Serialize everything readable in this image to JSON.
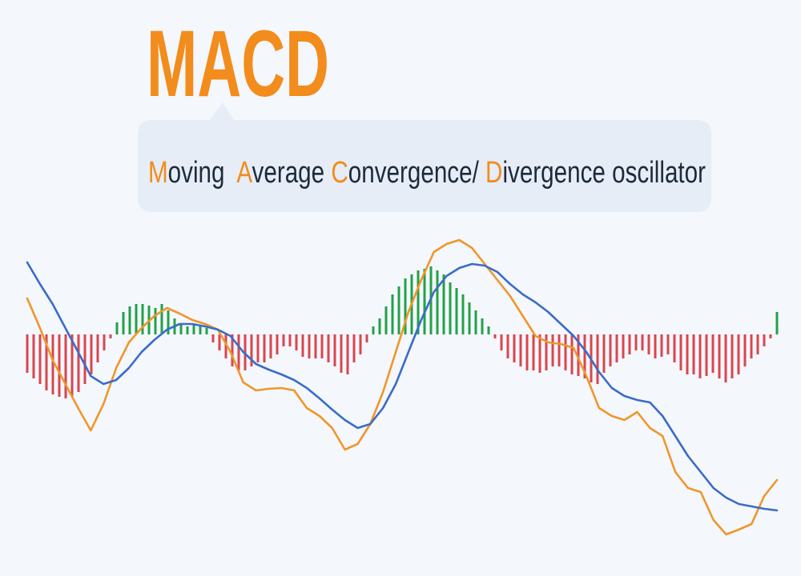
{
  "chart_data": {
    "type": "macd",
    "title": "MACD",
    "subtitle_parts": [
      "M",
      "oving  ",
      "A",
      "verage ",
      "C",
      "onvergence/ ",
      "D",
      "ivergence oscillator"
    ],
    "title_color": "#f28c1c",
    "text_color": "#1e2a3a",
    "ylim": [
      -260,
      130
    ],
    "histogram": {
      "positive_color": "#23a04a",
      "negative_color": "#d9464f",
      "values": [
        -48,
        -55,
        -62,
        -70,
        -75,
        -78,
        -80,
        -78,
        -72,
        -62,
        -50,
        -35,
        -20,
        -5,
        15,
        28,
        35,
        38,
        38,
        36,
        33,
        38,
        30,
        20,
        12,
        10,
        12,
        12,
        8,
        -10,
        -20,
        -30,
        -40,
        -45,
        -45,
        -40,
        -35,
        -35,
        -30,
        -25,
        -15,
        -15,
        -20,
        -28,
        -30,
        -30,
        -30,
        -35,
        -40,
        -48,
        -50,
        -35,
        -25,
        -10,
        10,
        20,
        35,
        50,
        60,
        70,
        75,
        80,
        82,
        85,
        80,
        75,
        65,
        58,
        50,
        40,
        30,
        20,
        10,
        -5,
        -20,
        -30,
        -35,
        -40,
        -45,
        -45,
        -48,
        -45,
        -40,
        -40,
        -45,
        -50,
        -52,
        -55,
        -60,
        -62,
        -48,
        -40,
        -35,
        -30,
        -25,
        -20,
        -20,
        -25,
        -30,
        -28,
        -25,
        -35,
        -45,
        -50,
        -50,
        -55,
        -52,
        -48,
        -55,
        -60,
        -55,
        -50,
        -40,
        -30,
        -25,
        -15,
        -5,
        28
      ]
    },
    "series": [
      {
        "color": "#f0962a",
        "values": [
          45,
          8,
          -32,
          -62,
          -92,
          -120,
          -87,
          -42,
          -10,
          8,
          23,
          33,
          26,
          18,
          13,
          6,
          -22,
          -60,
          -70,
          -68,
          -67,
          -70,
          -92,
          -102,
          -117,
          -144,
          -137,
          -112,
          -72,
          -22,
          28,
          68,
          103,
          113,
          118,
          108,
          88,
          68,
          48,
          23,
          -2,
          -10,
          -12,
          -17,
          -52,
          -92,
          -102,
          -107,
          -97,
          -117,
          -127,
          -172,
          -192,
          -197,
          -232,
          -250,
          -244,
          -237,
          -202,
          -182
        ]
      },
      {
        "color": "#3a6cc8",
        "values": [
          90,
          63,
          38,
          8,
          -22,
          -52,
          -62,
          -57,
          -42,
          -22,
          -7,
          6,
          13,
          13,
          10,
          6,
          -2,
          -22,
          -37,
          -44,
          -50,
          -57,
          -67,
          -80,
          -94,
          -107,
          -117,
          -112,
          -92,
          -62,
          -22,
          18,
          53,
          73,
          83,
          88,
          86,
          78,
          63,
          50,
          40,
          28,
          13,
          -2,
          -22,
          -47,
          -67,
          -77,
          -82,
          -85,
          -102,
          -127,
          -152,
          -172,
          -192,
          -204,
          -212,
          -215,
          -218,
          -220
        ]
      }
    ]
  }
}
